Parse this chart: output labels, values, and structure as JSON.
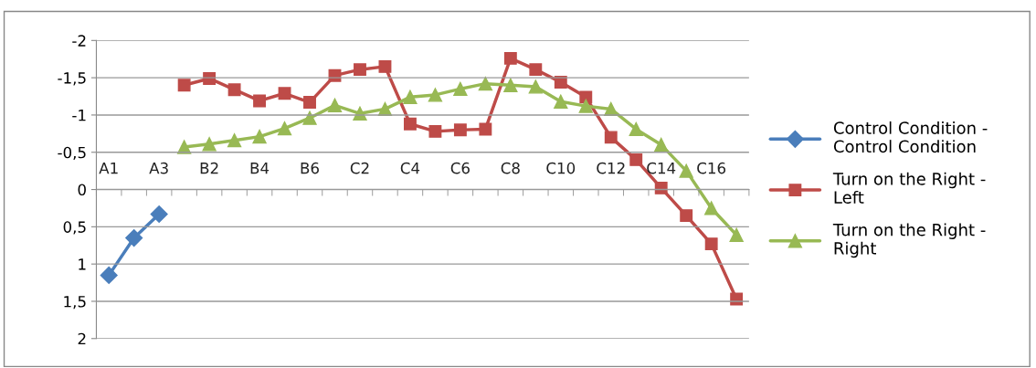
{
  "chart_data": {
    "type": "line",
    "categories": [
      "A1",
      null,
      "A3",
      null,
      "B2",
      null,
      "B4",
      null,
      "B6",
      null,
      "C2",
      null,
      "C4",
      null,
      "C6",
      null,
      "C8",
      null,
      "C10",
      null,
      "C12",
      null,
      "C14",
      null,
      "C16",
      null
    ],
    "series": [
      {
        "name": "Control Condition - Control Condition",
        "color": "#4a7ebb",
        "marker": "diamond",
        "values": [
          1.15,
          0.65,
          0.33,
          null,
          null,
          null,
          null,
          null,
          null,
          null,
          null,
          null,
          null,
          null,
          null,
          null,
          null,
          null,
          null,
          null,
          null,
          null,
          null,
          null,
          null,
          null
        ]
      },
      {
        "name": "Turn on the Right - Left",
        "color": "#be4b48",
        "marker": "square",
        "values": [
          null,
          null,
          null,
          -1.4,
          -1.49,
          -1.34,
          -1.19,
          -1.29,
          -1.17,
          -1.53,
          -1.61,
          -1.65,
          -0.88,
          -0.78,
          -0.8,
          -0.81,
          -1.76,
          -1.61,
          -1.44,
          -1.24,
          -0.7,
          -0.4,
          -0.02,
          0.35,
          0.73,
          1.47
        ]
      },
      {
        "name": "Turn on the Right - Right",
        "color": "#98b954",
        "marker": "triangle",
        "values": [
          null,
          null,
          null,
          -0.57,
          -0.61,
          -0.66,
          -0.71,
          -0.82,
          -0.96,
          -1.13,
          -1.02,
          -1.08,
          -1.24,
          -1.27,
          -1.35,
          -1.42,
          -1.4,
          -1.38,
          -1.18,
          -1.12,
          -1.08,
          -0.81,
          -0.6,
          -0.25,
          0.25,
          0.61
        ]
      }
    ],
    "ylim": [
      2,
      -2
    ],
    "yticks": [
      {
        "value": -2,
        "label": "-2"
      },
      {
        "value": -1.5,
        "label": "-1,5"
      },
      {
        "value": -1,
        "label": "-1"
      },
      {
        "value": -0.5,
        "label": "-0,5"
      },
      {
        "value": 0,
        "label": "0"
      },
      {
        "value": 0.5,
        "label": "0,5"
      },
      {
        "value": 1,
        "label": "1"
      },
      {
        "value": 1.5,
        "label": "1,5"
      },
      {
        "value": 2,
        "label": "2"
      }
    ],
    "grid": "y",
    "legend": "right",
    "line_style": "solid"
  }
}
